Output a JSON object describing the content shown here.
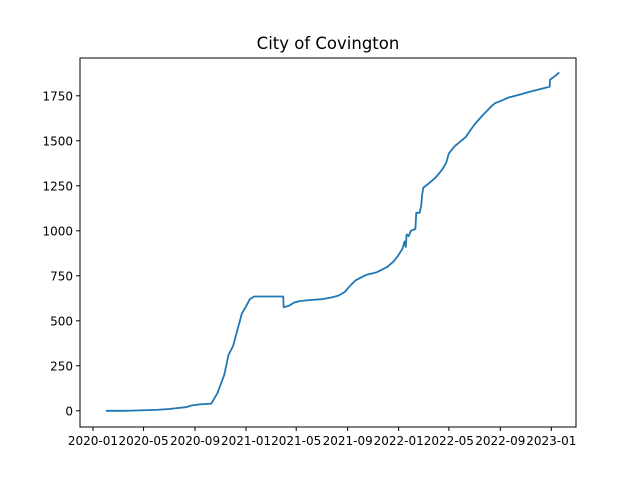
{
  "chart_data": {
    "type": "line",
    "title": "City of Covington",
    "xlabel": "",
    "ylabel": "",
    "x_tick_labels": [
      "2020-01",
      "2020-05",
      "2020-09",
      "2021-01",
      "2021-05",
      "2021-09",
      "2022-01",
      "2022-05",
      "2022-09",
      "2023-01"
    ],
    "y_tick_labels": [
      "0",
      "250",
      "500",
      "750",
      "1000",
      "1250",
      "1500",
      "1750"
    ],
    "x_tick_values": [
      "2020-01-01",
      "2020-05-01",
      "2020-09-01",
      "2021-01-01",
      "2021-05-01",
      "2021-09-01",
      "2022-01-01",
      "2022-05-01",
      "2022-09-01",
      "2023-01-01"
    ],
    "y_tick_values": [
      0,
      250,
      500,
      750,
      1000,
      1250,
      1500,
      1750
    ],
    "xlim": [
      "2019-12-01",
      "2023-03-01"
    ],
    "ylim": [
      -90,
      1960
    ],
    "grid": false,
    "legend": "none",
    "series": [
      {
        "color": "#1f77b4",
        "x": [
          "2020-02-01",
          "2020-03-15",
          "2020-05-01",
          "2020-06-01",
          "2020-07-01",
          "2020-07-20",
          "2020-08-10",
          "2020-08-25",
          "2020-09-10",
          "2020-10-10",
          "2020-10-25",
          "2020-11-10",
          "2020-11-20",
          "2020-12-01",
          "2020-12-08",
          "2020-12-15",
          "2020-12-22",
          "2021-01-01",
          "2021-01-10",
          "2021-01-20",
          "2021-01-28",
          "2021-02-05",
          "2021-02-15",
          "2021-03-01",
          "2021-03-15",
          "2021-03-31",
          "2021-04-01",
          "2021-04-15",
          "2021-04-25",
          "2021-05-10",
          "2021-06-01",
          "2021-07-01",
          "2021-07-25",
          "2021-08-10",
          "2021-08-25",
          "2021-09-05",
          "2021-09-20",
          "2021-10-15",
          "2021-11-10",
          "2021-12-05",
          "2021-12-20",
          "2021-12-30",
          "2022-01-10",
          "2022-01-15",
          "2022-01-18",
          "2022-01-20",
          "2022-01-25",
          "2022-01-30",
          "2022-02-10",
          "2022-02-12",
          "2022-02-20",
          "2022-02-24",
          "2022-02-26",
          "2022-03-01",
          "2022-03-15",
          "2022-04-01",
          "2022-04-15",
          "2022-04-25",
          "2022-05-01",
          "2022-05-15",
          "2022-06-10",
          "2022-07-01",
          "2022-07-20",
          "2022-08-10",
          "2022-08-20",
          "2022-09-01",
          "2022-09-20",
          "2022-10-15",
          "2022-11-15",
          "2022-12-10",
          "2022-12-28",
          "2022-12-29",
          "2023-01-10",
          "2023-01-20"
        ],
        "y": [
          0,
          0,
          3,
          5,
          10,
          15,
          20,
          30,
          35,
          40,
          100,
          200,
          310,
          360,
          420,
          480,
          540,
          580,
          620,
          635,
          635,
          635,
          635,
          635,
          635,
          635,
          575,
          585,
          600,
          610,
          615,
          620,
          630,
          640,
          660,
          690,
          725,
          755,
          770,
          800,
          830,
          860,
          900,
          940,
          910,
          980,
          970,
          1000,
          1010,
          1100,
          1100,
          1140,
          1200,
          1240,
          1265,
          1300,
          1340,
          1380,
          1430,
          1470,
          1520,
          1590,
          1640,
          1690,
          1710,
          1720,
          1740,
          1755,
          1775,
          1790,
          1800,
          1840,
          1860,
          1880
        ]
      }
    ]
  }
}
